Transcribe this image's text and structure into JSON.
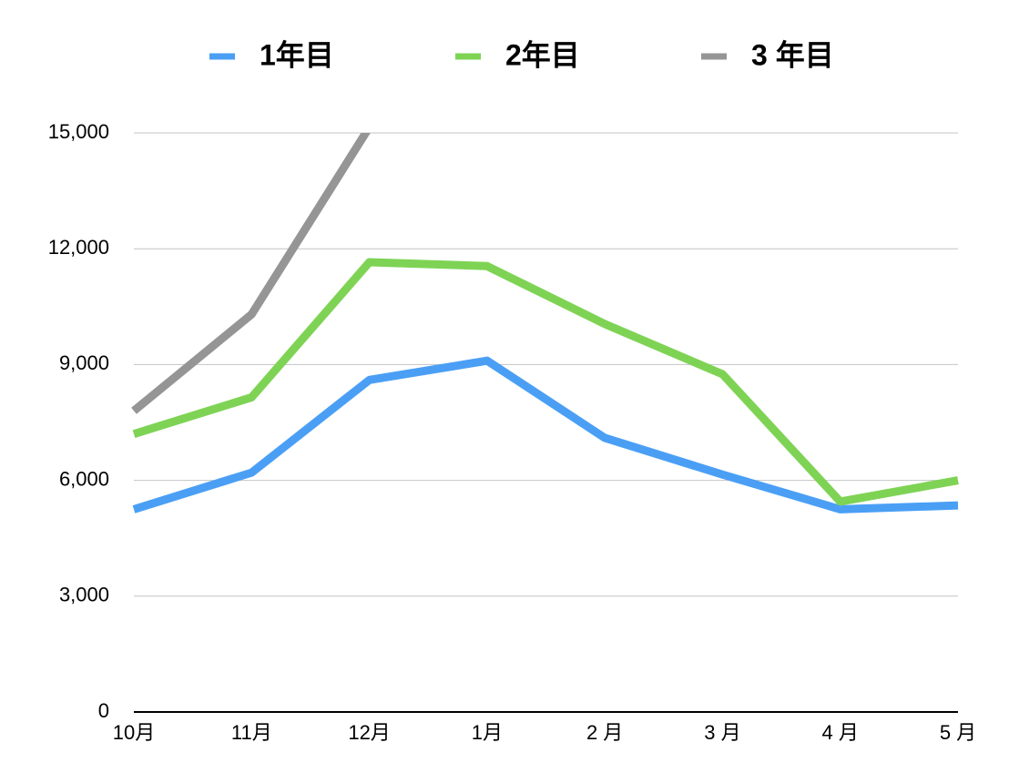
{
  "chart_data": {
    "type": "line",
    "categories": [
      "10月",
      "11月",
      "12月",
      "1月",
      "2 月",
      "3 月",
      "4 月",
      "5 月"
    ],
    "series": [
      {
        "name": "1年目",
        "color": "#4a9ff5",
        "values": [
          5250,
          6200,
          8600,
          9100,
          7100,
          6150,
          5250,
          5350
        ]
      },
      {
        "name": "2年目",
        "color": "#7ed354",
        "values": [
          7200,
          8150,
          11650,
          11550,
          10050,
          8750,
          5450,
          6000
        ]
      },
      {
        "name": "3 年目",
        "color": "#959595",
        "values": [
          7800,
          10300,
          15150,
          null,
          null,
          null,
          null,
          null
        ]
      }
    ],
    "ylim": [
      0,
      15000
    ],
    "yticks": [
      0,
      {
        "value": 3000,
        "label": "3,000"
      },
      {
        "value": 6000,
        "label": "6,000"
      },
      {
        "value": 9000,
        "label": "9,000"
      },
      {
        "value": 12000,
        "label": "12,000"
      },
      {
        "value": 15000,
        "label": "15,000"
      }
    ],
    "grid": true,
    "legend": "top"
  }
}
